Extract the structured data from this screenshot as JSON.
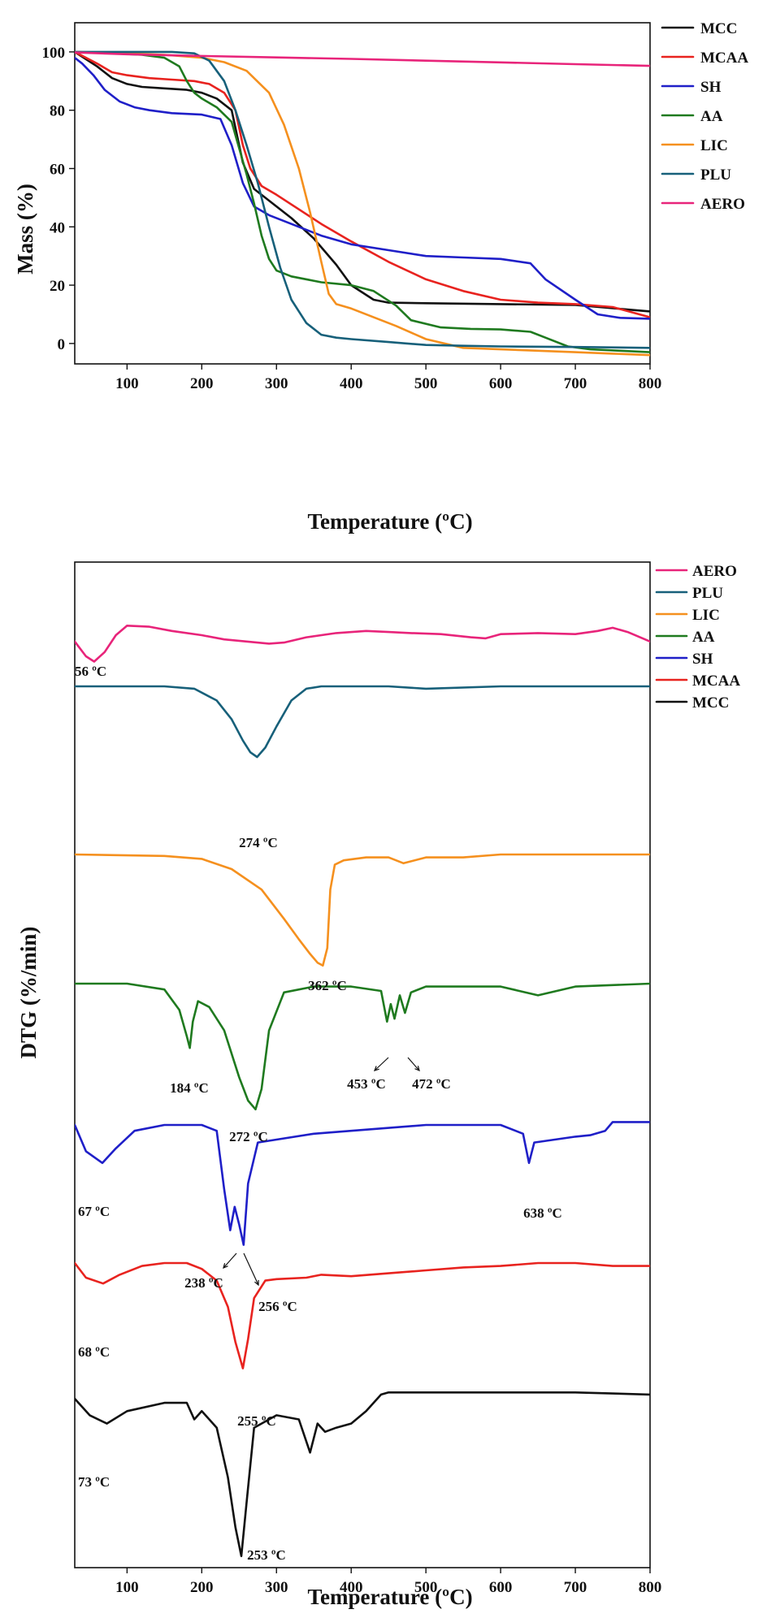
{
  "chart_data": [
    {
      "type": "line",
      "xlabel": "Temperature (ºC)",
      "ylabel": "Mass (%)",
      "xlim": [
        30,
        800
      ],
      "ylim": [
        -7,
        110
      ],
      "xticks": [
        100,
        200,
        300,
        400,
        500,
        600,
        700,
        800
      ],
      "yticks": [
        0,
        20,
        40,
        60,
        80,
        100
      ],
      "legend_position": "right",
      "colors": {
        "MCC": "#111111",
        "MCAA": "#e8231f",
        "SH": "#1f1fc8",
        "AA": "#1f7a1f",
        "LIC": "#f5901e",
        "PLU": "#17607a",
        "AERO": "#e8247a"
      },
      "series": [
        {
          "name": "MCC",
          "x": [
            30,
            60,
            80,
            100,
            120,
            150,
            180,
            200,
            220,
            240,
            255,
            270,
            290,
            320,
            350,
            380,
            400,
            430,
            450,
            500,
            600,
            700,
            800
          ],
          "y": [
            100,
            95,
            91,
            89,
            88,
            87.5,
            87,
            86,
            84,
            80,
            62,
            53,
            49,
            43,
            36,
            27,
            20,
            15,
            14,
            13.8,
            13.5,
            13.2,
            11
          ]
        },
        {
          "name": "MCAA",
          "x": [
            30,
            60,
            80,
            100,
            130,
            160,
            190,
            210,
            230,
            245,
            255,
            265,
            280,
            300,
            330,
            360,
            400,
            450,
            500,
            550,
            600,
            650,
            700,
            750,
            800
          ],
          "y": [
            100,
            96,
            93,
            92,
            91,
            90.5,
            90,
            89,
            86,
            80,
            68,
            60,
            54,
            51,
            46,
            41,
            35,
            28,
            22,
            18,
            15,
            14,
            13.5,
            12.5,
            9
          ]
        },
        {
          "name": "SH",
          "x": [
            30,
            40,
            55,
            70,
            90,
            110,
            130,
            160,
            200,
            225,
            240,
            255,
            270,
            290,
            320,
            360,
            400,
            450,
            500,
            550,
            600,
            640,
            660,
            700,
            730,
            760,
            800
          ],
          "y": [
            98,
            96,
            92,
            87,
            83,
            81,
            80,
            79,
            78.5,
            77,
            68,
            55,
            47,
            44,
            41,
            37,
            34,
            32,
            30,
            29.5,
            29,
            27.5,
            22,
            15,
            10,
            8.8,
            8.5
          ]
        },
        {
          "name": "AA",
          "x": [
            30,
            80,
            120,
            150,
            170,
            180,
            190,
            200,
            220,
            240,
            250,
            260,
            270,
            280,
            290,
            300,
            320,
            360,
            400,
            430,
            460,
            480,
            520,
            560,
            600,
            640,
            660,
            690,
            720,
            760,
            800
          ],
          "y": [
            100,
            99.5,
            99,
            98,
            95,
            90,
            86,
            84,
            81,
            76,
            67,
            58,
            48,
            37,
            29,
            25,
            23,
            21,
            20,
            18,
            13,
            8,
            5.5,
            5,
            4.8,
            4,
            2,
            -1,
            -2,
            -2.5,
            -3
          ]
        },
        {
          "name": "LIC",
          "x": [
            30,
            100,
            150,
            200,
            230,
            260,
            290,
            310,
            330,
            345,
            360,
            370,
            380,
            400,
            430,
            460,
            500,
            550,
            600,
            650,
            700,
            750,
            800
          ],
          "y": [
            100,
            99.5,
            99,
            98,
            96.5,
            93.5,
            86,
            75,
            60,
            45,
            28,
            17,
            13.5,
            12,
            9,
            6,
            1.5,
            -1.5,
            -2,
            -2.5,
            -3,
            -3.5,
            -4
          ]
        },
        {
          "name": "PLU",
          "x": [
            30,
            100,
            160,
            190,
            210,
            230,
            245,
            260,
            275,
            290,
            305,
            320,
            340,
            360,
            380,
            400,
            450,
            500,
            550,
            600,
            700,
            800
          ],
          "y": [
            100,
            100,
            100,
            99.5,
            97,
            90,
            80,
            68,
            55,
            40,
            26,
            15,
            7,
            3,
            2,
            1.5,
            0.5,
            -0.5,
            -0.8,
            -1,
            -1.2,
            -1.5
          ]
        },
        {
          "name": "AERO",
          "x": [
            30,
            100,
            200,
            300,
            400,
            500,
            600,
            700,
            800
          ],
          "y": [
            99.8,
            99.2,
            98.6,
            98.1,
            97.6,
            97.0,
            96.4,
            95.8,
            95.2
          ]
        }
      ]
    },
    {
      "type": "line",
      "xlabel": "Temperature (ºC)",
      "ylabel": "DTG (%/min)",
      "xlim": [
        30,
        800
      ],
      "xticks": [
        100,
        200,
        300,
        400,
        500,
        600,
        700,
        800
      ],
      "legend_position": "top-right",
      "legend_order": [
        "AERO",
        "PLU",
        "LIC",
        "AA",
        "SH",
        "MCAA",
        "MCC"
      ],
      "colors": {
        "AERO": "#e8247a",
        "PLU": "#17607a",
        "LIC": "#f5901e",
        "AA": "#1f7a1f",
        "SH": "#1f1fc8",
        "MCAA": "#e8231f",
        "MCC": "#111111"
      },
      "peak_labels": {
        "AERO": [
          "56 ºC"
        ],
        "PLU": [
          "274 ºC"
        ],
        "LIC": [
          "362 ºC"
        ],
        "AA": [
          "184 ºC",
          "272 ºC",
          "453 ºC",
          "472 ºC"
        ],
        "SH": [
          "67 ºC",
          "238 ºC",
          "256 ºC",
          "638 ºC"
        ],
        "MCAA": [
          "68 ºC",
          "255 ºC"
        ],
        "MCC": [
          "73 ºC",
          "253 ºC"
        ]
      },
      "series": [
        {
          "name": "AERO",
          "x": [
            30,
            45,
            56,
            70,
            85,
            100,
            130,
            160,
            200,
            230,
            260,
            290,
            310,
            340,
            380,
            420,
            450,
            480,
            520,
            560,
            580,
            600,
            650,
            700,
            730,
            750,
            770,
            800
          ],
          "y": [
            0.2,
            -0.5,
            -0.75,
            -0.3,
            0.5,
            0.95,
            0.9,
            0.7,
            0.5,
            0.3,
            0.2,
            0.1,
            0.15,
            0.4,
            0.6,
            0.7,
            0.65,
            0.6,
            0.55,
            0.4,
            0.35,
            0.55,
            0.6,
            0.55,
            0.7,
            0.85,
            0.65,
            0.2
          ]
        },
        {
          "name": "PLU",
          "x": [
            30,
            150,
            190,
            220,
            240,
            255,
            265,
            274,
            285,
            300,
            320,
            340,
            360,
            450,
            500,
            600,
            700,
            800
          ],
          "y": [
            0,
            0,
            -0.1,
            -0.6,
            -1.4,
            -2.3,
            -2.8,
            -3.0,
            -2.6,
            -1.7,
            -0.6,
            -0.1,
            0,
            0,
            -0.1,
            0,
            0,
            0
          ]
        },
        {
          "name": "LIC",
          "x": [
            30,
            150,
            200,
            240,
            280,
            310,
            330,
            345,
            355,
            362,
            368,
            372,
            378,
            390,
            420,
            450,
            470,
            500,
            550,
            600,
            650,
            700,
            800
          ],
          "y": [
            0,
            -0.05,
            -0.15,
            -0.5,
            -1.2,
            -2.2,
            -2.9,
            -3.4,
            -3.7,
            -3.8,
            -3.2,
            -1.2,
            -0.35,
            -0.2,
            -0.1,
            -0.1,
            -0.3,
            -0.1,
            -0.1,
            0,
            0,
            0,
            0
          ]
        },
        {
          "name": "AA",
          "x": [
            30,
            100,
            150,
            170,
            180,
            184,
            188,
            195,
            210,
            230,
            250,
            262,
            272,
            280,
            290,
            310,
            350,
            400,
            440,
            448,
            453,
            458,
            465,
            472,
            480,
            500,
            600,
            650,
            700,
            800
          ],
          "y": [
            0,
            0,
            -0.2,
            -0.9,
            -1.8,
            -2.2,
            -1.3,
            -0.6,
            -0.8,
            -1.6,
            -3.2,
            -4.0,
            -4.3,
            -3.6,
            -1.6,
            -0.3,
            -0.1,
            -0.1,
            -0.25,
            -1.3,
            -0.7,
            -1.2,
            -0.4,
            -1.0,
            -0.3,
            -0.1,
            -0.1,
            -0.4,
            -0.1,
            0
          ]
        },
        {
          "name": "SH",
          "x": [
            30,
            45,
            67,
            85,
            110,
            150,
            200,
            220,
            230,
            238,
            244,
            250,
            256,
            262,
            275,
            300,
            350,
            400,
            500,
            600,
            630,
            638,
            645,
            700,
            720,
            740,
            750,
            770,
            800
          ],
          "y": [
            0,
            -0.9,
            -1.3,
            -0.8,
            -0.2,
            0,
            0,
            -0.2,
            -2.2,
            -3.6,
            -2.8,
            -3.4,
            -4.1,
            -2.0,
            -0.6,
            -0.5,
            -0.3,
            -0.2,
            0,
            0,
            -0.3,
            -1.3,
            -0.6,
            -0.4,
            -0.35,
            -0.2,
            0.1,
            0.1,
            0.1
          ]
        },
        {
          "name": "MCAA",
          "x": [
            30,
            45,
            68,
            90,
            120,
            150,
            180,
            200,
            220,
            235,
            245,
            255,
            262,
            270,
            285,
            300,
            340,
            360,
            400,
            450,
            500,
            550,
            600,
            650,
            700,
            750,
            800
          ],
          "y": [
            0,
            -0.5,
            -0.7,
            -0.4,
            -0.1,
            0,
            0,
            -0.2,
            -0.6,
            -1.5,
            -2.7,
            -3.6,
            -2.6,
            -1.2,
            -0.6,
            -0.55,
            -0.5,
            -0.4,
            -0.45,
            -0.35,
            -0.25,
            -0.15,
            -0.1,
            0,
            0,
            -0.1,
            -0.1
          ]
        },
        {
          "name": "MCC",
          "x": [
            30,
            50,
            73,
            100,
            150,
            180,
            190,
            200,
            220,
            235,
            245,
            253,
            260,
            270,
            300,
            330,
            345,
            355,
            365,
            380,
            400,
            420,
            440,
            450,
            500,
            600,
            700,
            800
          ],
          "y": [
            0,
            -0.4,
            -0.6,
            -0.3,
            -0.1,
            -0.1,
            -0.5,
            -0.3,
            -0.7,
            -1.9,
            -3.1,
            -3.8,
            -2.5,
            -0.7,
            -0.4,
            -0.5,
            -1.3,
            -0.6,
            -0.8,
            -0.7,
            -0.6,
            -0.3,
            0.1,
            0.15,
            0.15,
            0.15,
            0.15,
            0.1
          ]
        }
      ]
    }
  ]
}
